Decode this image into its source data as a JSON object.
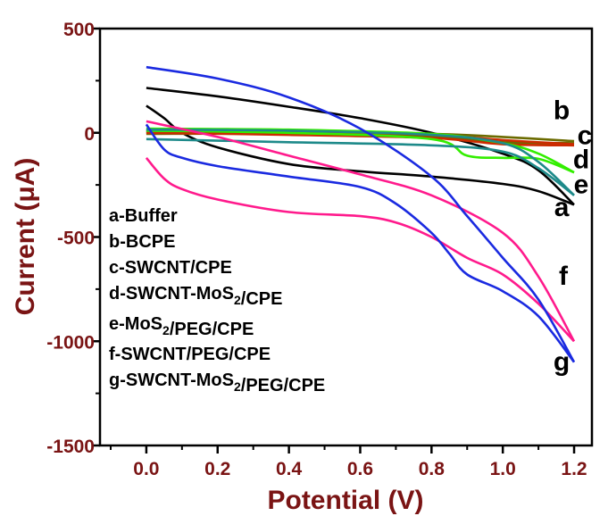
{
  "chart_data": {
    "type": "line",
    "xlabel": "Potential (V)",
    "ylabel": "Current (μA)",
    "xlim": [
      -0.13,
      1.25
    ],
    "ylim": [
      -1500,
      500
    ],
    "x_ticks": [
      "0.0",
      "0.2",
      "0.4",
      "0.6",
      "0.8",
      "1.0",
      "1.2"
    ],
    "y_ticks": [
      "500",
      "0",
      "-500",
      "-1000",
      "-1500"
    ],
    "legend_placement": "left",
    "legend": [
      "a-Buffer",
      "b-BCPE",
      "c-SWCNT/CPE",
      "d-SWCNT-MoS2/CPE",
      "e-MoS2/PEG/CPE",
      "f-SWCNT/PEG/CPE",
      "g-SWCNT-MoS2/PEG/CPE"
    ],
    "series": [
      {
        "label": "a",
        "color": "#000000",
        "upper": [
          [
            0,
            215
          ],
          [
            0.2,
            175
          ],
          [
            0.4,
            125
          ],
          [
            0.6,
            70
          ],
          [
            0.8,
            0
          ],
          [
            1.0,
            -100
          ],
          [
            1.1,
            -180
          ],
          [
            1.2,
            -345
          ]
        ],
        "lower": [
          [
            0,
            130
          ],
          [
            0.05,
            70
          ],
          [
            0.1,
            0
          ],
          [
            0.2,
            -70
          ],
          [
            0.4,
            -150
          ],
          [
            0.6,
            -185
          ],
          [
            0.8,
            -210
          ],
          [
            1.0,
            -245
          ],
          [
            1.1,
            -280
          ],
          [
            1.2,
            -345
          ]
        ]
      },
      {
        "label": "b",
        "color": "#6b6b00",
        "upper": [
          [
            0,
            5
          ],
          [
            0.4,
            5
          ],
          [
            0.8,
            -5
          ],
          [
            1.0,
            -20
          ],
          [
            1.2,
            -40
          ]
        ],
        "lower": [
          [
            0,
            -5
          ],
          [
            0.4,
            -5
          ],
          [
            0.8,
            -20
          ],
          [
            1.0,
            -45
          ],
          [
            1.2,
            -50
          ]
        ]
      },
      {
        "label": "c",
        "color": "#cc2a00",
        "upper": [
          [
            0,
            10
          ],
          [
            0.4,
            5
          ],
          [
            0.8,
            -10
          ],
          [
            1.0,
            -35
          ],
          [
            1.2,
            -55
          ]
        ],
        "lower": [
          [
            0,
            0
          ],
          [
            0.4,
            -10
          ],
          [
            0.8,
            -25
          ],
          [
            1.0,
            -55
          ],
          [
            1.2,
            -60
          ]
        ]
      },
      {
        "label": "d",
        "color": "#33ee00",
        "upper": [
          [
            0,
            20
          ],
          [
            0.4,
            15
          ],
          [
            0.8,
            -5
          ],
          [
            1.0,
            -50
          ],
          [
            1.1,
            -100
          ],
          [
            1.2,
            -190
          ]
        ],
        "lower": [
          [
            0,
            10
          ],
          [
            0.4,
            0
          ],
          [
            0.8,
            -30
          ],
          [
            0.9,
            -110
          ],
          [
            1.0,
            -120
          ],
          [
            1.1,
            -125
          ],
          [
            1.2,
            -190
          ]
        ]
      },
      {
        "label": "e",
        "color": "#1e8a8a",
        "upper": [
          [
            0,
            15
          ],
          [
            0.4,
            10
          ],
          [
            0.8,
            -10
          ],
          [
            1.0,
            -50
          ],
          [
            1.1,
            -140
          ],
          [
            1.2,
            -300
          ]
        ],
        "lower": [
          [
            0,
            -30
          ],
          [
            0.4,
            -45
          ],
          [
            0.8,
            -60
          ],
          [
            1.0,
            -90
          ],
          [
            1.1,
            -170
          ],
          [
            1.2,
            -300
          ]
        ]
      },
      {
        "label": "f",
        "color": "#ff1a8c",
        "upper": [
          [
            0,
            55
          ],
          [
            0.2,
            -20
          ],
          [
            0.4,
            -110
          ],
          [
            0.6,
            -200
          ],
          [
            0.8,
            -300
          ],
          [
            1.0,
            -480
          ],
          [
            1.1,
            -690
          ],
          [
            1.2,
            -1000
          ]
        ],
        "lower": [
          [
            0,
            -120
          ],
          [
            0.05,
            -220
          ],
          [
            0.1,
            -270
          ],
          [
            0.2,
            -320
          ],
          [
            0.4,
            -380
          ],
          [
            0.6,
            -400
          ],
          [
            0.7,
            -430
          ],
          [
            0.8,
            -500
          ],
          [
            0.9,
            -600
          ],
          [
            1.0,
            -680
          ],
          [
            1.1,
            -820
          ],
          [
            1.2,
            -1000
          ]
        ]
      },
      {
        "label": "g",
        "color": "#1a2ae0",
        "upper": [
          [
            0,
            315
          ],
          [
            0.2,
            260
          ],
          [
            0.4,
            170
          ],
          [
            0.6,
            20
          ],
          [
            0.8,
            -210
          ],
          [
            0.9,
            -400
          ],
          [
            1.0,
            -600
          ],
          [
            1.1,
            -800
          ],
          [
            1.2,
            -1100
          ]
        ],
        "lower": [
          [
            0,
            40
          ],
          [
            0.05,
            -80
          ],
          [
            0.1,
            -120
          ],
          [
            0.2,
            -160
          ],
          [
            0.4,
            -210
          ],
          [
            0.6,
            -260
          ],
          [
            0.7,
            -340
          ],
          [
            0.8,
            -480
          ],
          [
            0.85,
            -580
          ],
          [
            0.9,
            -680
          ],
          [
            1.0,
            -760
          ],
          [
            1.1,
            -880
          ],
          [
            1.2,
            -1100
          ]
        ]
      }
    ],
    "curve_labels": [
      {
        "text": "a",
        "x": 1.165,
        "y": -400
      },
      {
        "text": "b",
        "x": 1.165,
        "y": 65
      },
      {
        "text": "c",
        "x": 1.23,
        "y": -55
      },
      {
        "text": "d",
        "x": 1.22,
        "y": -170
      },
      {
        "text": "e",
        "x": 1.22,
        "y": -290
      },
      {
        "text": "f",
        "x": 1.17,
        "y": -730
      },
      {
        "text": "g",
        "x": 1.165,
        "y": -1140
      }
    ]
  }
}
